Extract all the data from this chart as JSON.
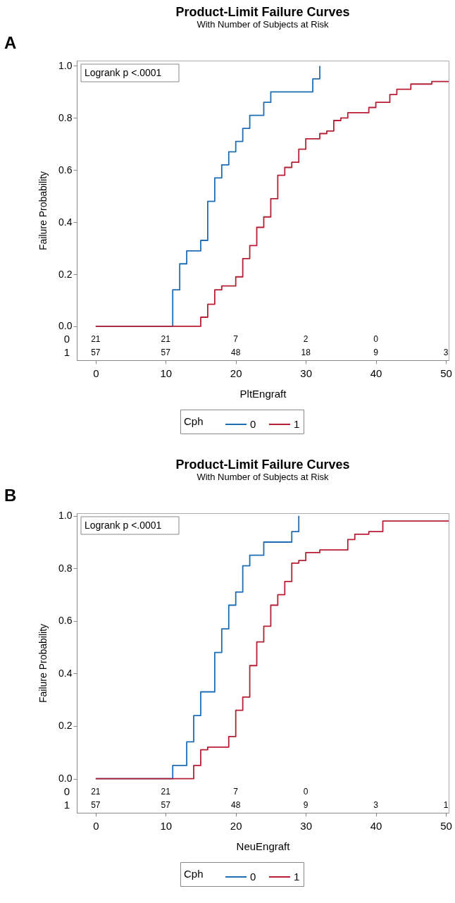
{
  "chart_data": [
    {
      "type": "step",
      "title": "Product-Limit Failure Curves",
      "subtitle": "With Number of Subjects at Risk",
      "xlabel": "PltEngraft",
      "ylabel": "Failure Probability",
      "legend_title": "Cph",
      "legend": "bottom",
      "grid": false,
      "xlim": [
        -2.7,
        50.4
      ],
      "xticks": [
        0,
        10,
        20,
        30,
        40,
        50
      ],
      "ylim": [
        -0.13,
        1.02
      ],
      "yticks": [
        {
          "value": 0,
          "label": "0.0"
        },
        {
          "value": 0.2,
          "label": "0.2"
        },
        {
          "value": 0.4,
          "label": "0.4"
        },
        {
          "value": 0.6,
          "label": "0.6"
        },
        {
          "value": 0.8,
          "label": "0.8"
        },
        {
          "value": 1,
          "label": "1.0"
        }
      ],
      "annotations": [
        "A",
        "Logrank p <.0001",
        "21",
        "21",
        "7",
        "2",
        "0",
        "57",
        "57",
        "48",
        "18",
        "9",
        "3"
      ],
      "series": [
        {
          "name": "0",
          "color": "#1f6db5",
          "x": [
            0,
            11,
            12,
            13,
            15,
            16,
            17,
            18,
            19,
            20,
            21,
            22,
            24,
            25,
            31,
            32
          ],
          "values": [
            0,
            0.14,
            0.24,
            0.29,
            0.33,
            0.48,
            0.57,
            0.62,
            0.67,
            0.71,
            0.76,
            0.81,
            0.86,
            0.9,
            0.95,
            1.0
          ]
        },
        {
          "name": "1",
          "color": "#b81f35",
          "x": [
            0,
            15,
            16,
            17,
            18,
            20,
            21,
            22,
            23,
            24,
            25,
            26,
            27,
            28,
            29,
            30,
            32,
            33,
            34,
            35,
            36,
            39,
            40,
            42,
            43,
            45,
            48,
            50.4
          ],
          "values": [
            0,
            0.035,
            0.085,
            0.14,
            0.155,
            0.19,
            0.26,
            0.31,
            0.38,
            0.42,
            0.49,
            0.58,
            0.61,
            0.63,
            0.68,
            0.72,
            0.74,
            0.75,
            0.79,
            0.8,
            0.82,
            0.84,
            0.86,
            0.89,
            0.91,
            0.93,
            0.94,
            0.94
          ]
        }
      ]
    },
    {
      "type": "step",
      "title": "Product-Limit Failure Curves",
      "subtitle": "With Number of Subjects at Risk",
      "xlabel": "NeuEngraft",
      "ylabel": "Failure Probability",
      "legend_title": "Cph",
      "legend": "bottom",
      "grid": false,
      "xlim": [
        -2.7,
        50.4
      ],
      "xticks": [
        0,
        10,
        20,
        30,
        40,
        50
      ],
      "ylim": [
        -0.13,
        1.01
      ],
      "yticks": [
        {
          "value": 0,
          "label": "0.0"
        },
        {
          "value": 0.2,
          "label": "0.2"
        },
        {
          "value": 0.4,
          "label": "0.4"
        },
        {
          "value": 0.6,
          "label": "0.6"
        },
        {
          "value": 0.8,
          "label": "0.8"
        },
        {
          "value": 1,
          "label": "1.0"
        }
      ],
      "annotations": [
        "B",
        "Logrank p <.0001",
        "21",
        "21",
        "7",
        "0",
        "57",
        "57",
        "48",
        "9",
        "3",
        "1"
      ],
      "series": [
        {
          "name": "0",
          "color": "#1f6db5",
          "x": [
            0,
            11,
            13,
            14,
            15,
            17,
            18,
            19,
            20,
            21,
            22,
            24,
            28,
            29
          ],
          "values": [
            0,
            0.05,
            0.14,
            0.24,
            0.33,
            0.48,
            0.57,
            0.66,
            0.71,
            0.81,
            0.85,
            0.9,
            0.94,
            1.0
          ]
        },
        {
          "name": "1",
          "color": "#b81f35",
          "x": [
            0,
            14,
            15,
            16,
            19,
            20,
            21,
            22,
            23,
            24,
            25,
            26,
            27,
            28,
            29,
            30,
            32,
            36,
            37,
            39,
            41,
            50.4
          ],
          "values": [
            0,
            0.05,
            0.11,
            0.12,
            0.16,
            0.26,
            0.31,
            0.43,
            0.52,
            0.58,
            0.66,
            0.7,
            0.75,
            0.82,
            0.83,
            0.86,
            0.87,
            0.91,
            0.93,
            0.94,
            0.98,
            0.98
          ]
        }
      ]
    }
  ]
}
